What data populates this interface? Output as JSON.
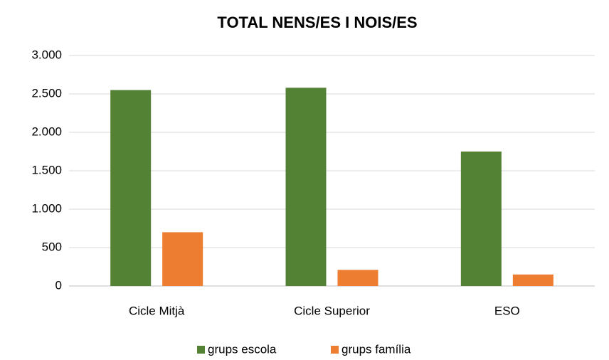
{
  "chart_data": {
    "type": "bar",
    "title": "TOTAL NENS/ES I NOIS/ES",
    "categories": [
      "Cicle Mitjà",
      "Cicle Superior",
      "ESO"
    ],
    "series": [
      {
        "name": "grups escola",
        "color": "#548235",
        "values": [
          2550,
          2580,
          1750
        ]
      },
      {
        "name": "grups família",
        "color": "#ed7d31",
        "values": [
          700,
          210,
          150
        ]
      }
    ],
    "ylim": [
      0,
      3000
    ],
    "yticks": [
      0,
      500,
      {
        "value": 1000,
        "label": "1.000"
      },
      {
        "value": 1500,
        "label": "1.500"
      },
      {
        "value": 2000,
        "label": "2.000"
      },
      {
        "value": 2500,
        "label": "2.500"
      },
      {
        "value": 3000,
        "label": "3.000"
      }
    ],
    "grid": true,
    "legend": "bottom"
  }
}
